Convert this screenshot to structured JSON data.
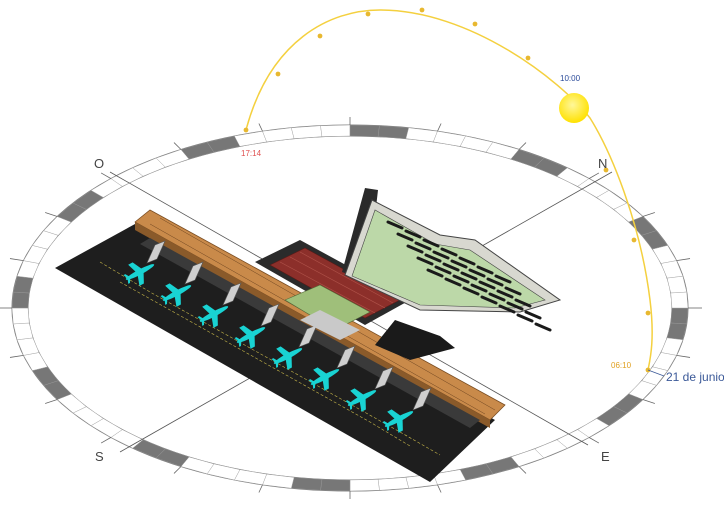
{
  "compass": {
    "north": "N",
    "south": "S",
    "east": "E",
    "west": "O"
  },
  "sun_path": {
    "sunrise_time": "06:10",
    "sun_time": "10:00",
    "sunset_time": "17:14",
    "date_label": "21 de junio"
  },
  "colors": {
    "sun_path": "#f4d03f",
    "sun": "#ffea00",
    "sunrise_label": "#e0a020",
    "sun_time_label": "#2a4a9a",
    "sunset_label": "#e05050",
    "date_label": "#3b5998",
    "terminal_roof": "#c98a4a",
    "aircraft": "#19d3d3",
    "apron": "#1e1e1e",
    "canopy": "#2a2a2a"
  }
}
